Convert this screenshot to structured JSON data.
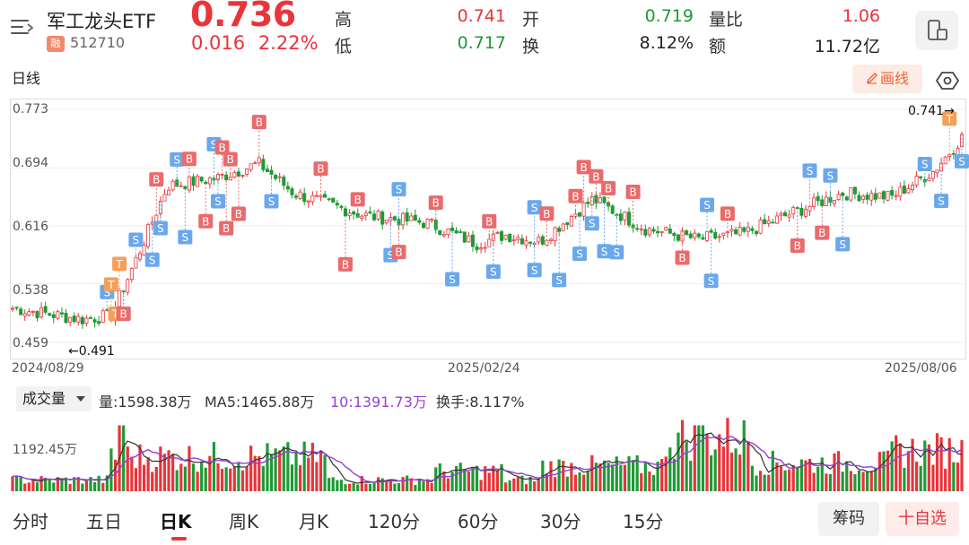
{
  "header": {
    "name": "军工龙头ETF",
    "badge": "融",
    "code": "512710",
    "price": "0.736",
    "change": "0.016",
    "change_pct": "2.22%",
    "stats": [
      {
        "label": "高",
        "value": "0.741",
        "tone": "red"
      },
      {
        "label": "开",
        "value": "0.719",
        "tone": "green"
      },
      {
        "label": "量比",
        "value": "1.06",
        "tone": "red"
      },
      {
        "label": "低",
        "value": "0.717",
        "tone": "green"
      },
      {
        "label": "换",
        "value": "8.12%",
        "tone": "dark"
      },
      {
        "label": "额",
        "value": "11.72亿",
        "tone": "dark"
      }
    ]
  },
  "toolbar": {
    "period_title": "日线",
    "draw_label": "画线"
  },
  "chart": {
    "y_ticks": [
      "0.773",
      "0.694",
      "0.616",
      "0.538",
      "0.459"
    ],
    "x_ticks": [
      "2024/08/29",
      "2025/02/24",
      "2025/08/06"
    ],
    "high_mark": "0.741→",
    "low_mark": "←0.491",
    "ymin": 0.459,
    "ymax": 0.773,
    "n_candles": 232
  },
  "volume": {
    "indicator_label": "成交量",
    "vol_text": "量:1598.38万",
    "ma5_text": "MA5:1465.88万",
    "ma10_text": "10:1391.73万",
    "turnover_text": "换手:8.117%",
    "axis_value": "1192.45万",
    "ma5_color": "#333333",
    "ma10_color": "#9b3fcf"
  },
  "tabs": [
    "分时",
    "五日",
    "日K",
    "周K",
    "月K",
    "120分",
    "60分",
    "30分",
    "15分"
  ],
  "active_tab": "日K",
  "actions": {
    "chip_label": "筹码",
    "favorite_label": "十自选"
  },
  "colors": {
    "up": "#e8343a",
    "down": "#1e9a34",
    "buy_tag": "#e96b6b",
    "sell_tag": "#6aa8ee",
    "t_tag": "#f5a05a"
  }
}
